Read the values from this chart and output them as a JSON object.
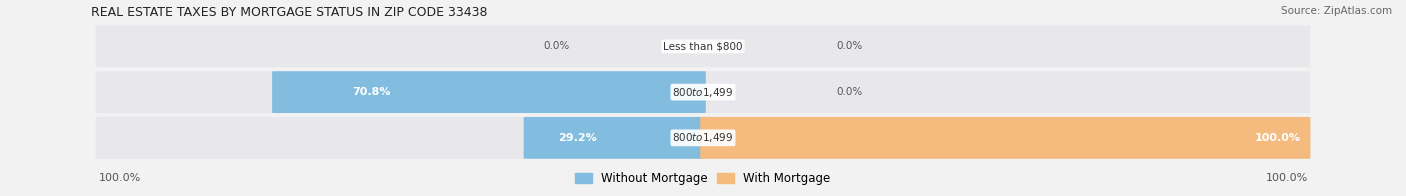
{
  "title": "REAL ESTATE TAXES BY MORTGAGE STATUS IN ZIP CODE 33438",
  "source": "Source: ZipAtlas.com",
  "categories": [
    "Less than $800",
    "$800 to $1,499",
    "$800 to $1,499"
  ],
  "without_mortgage": [
    0.0,
    70.8,
    29.2
  ],
  "with_mortgage": [
    0.0,
    0.0,
    100.0
  ],
  "blue_color": "#82BDE0",
  "orange_color": "#F5BA7E",
  "bg_row_color": "#E8E8EC",
  "bg_fig_color": "#F2F2F2",
  "legend_blue": "Without Mortgage",
  "legend_orange": "With Mortgage",
  "figsize": [
    14.06,
    1.96
  ],
  "dpi": 100
}
